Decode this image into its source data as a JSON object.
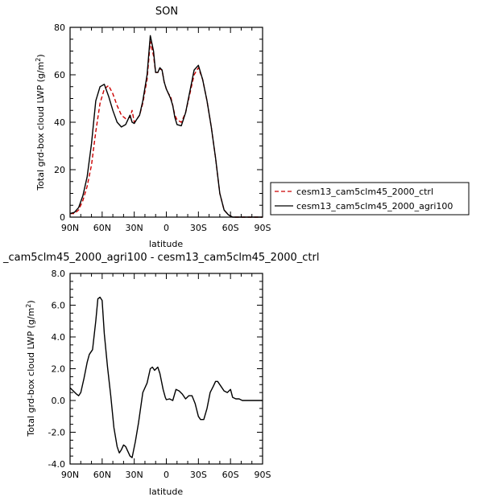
{
  "chart_data": [
    {
      "type": "line",
      "title": "SON",
      "xlabel": "latitude",
      "ylabel": "Total grd-box cloud LWP (g/m",
      "ylabel_sup": "2",
      "ylabel_close": ")",
      "xlim": [
        90,
        -90
      ],
      "ylim": [
        0,
        80
      ],
      "xticks": [
        90,
        60,
        30,
        0,
        -30,
        -60,
        -90
      ],
      "xtick_labels": [
        "90N",
        "60N",
        "30N",
        "0",
        "30S",
        "60S",
        "90S"
      ],
      "yticks": [
        0,
        20,
        40,
        60,
        80
      ],
      "ytick_labels": [
        "0",
        "20",
        "40",
        "60",
        "80"
      ],
      "legend_position": "right",
      "series": [
        {
          "name": "cesm13_cam5clm45_2000_ctrl",
          "color": "#cc0000",
          "dash": true,
          "x": [
            90,
            86,
            82,
            78,
            74,
            70,
            66,
            62,
            58,
            54,
            50,
            46,
            42,
            38,
            34,
            32,
            30,
            28,
            25,
            22,
            18,
            15,
            12,
            10,
            8,
            6,
            4,
            2,
            0,
            -2,
            -4,
            -6,
            -8,
            -10,
            -14,
            -18,
            -22,
            -26,
            -30,
            -34,
            -38,
            -42,
            -46,
            -50,
            -54,
            -58,
            -62,
            -66,
            -70,
            -74,
            -78,
            -82,
            -86,
            -90
          ],
          "y": [
            1.5,
            1.5,
            3,
            7,
            13,
            22,
            36,
            48,
            54,
            55.5,
            52,
            47,
            43,
            41.5,
            42,
            45,
            40,
            41,
            43,
            48,
            58,
            74,
            68,
            61,
            61,
            62.5,
            62,
            57,
            54,
            52,
            51,
            47,
            43,
            41,
            40,
            44,
            52,
            60,
            63,
            58,
            49,
            38,
            25,
            10,
            3,
            1,
            0,
            0,
            0,
            0,
            0,
            0,
            0,
            0
          ]
        },
        {
          "name": "cesm13_cam5clm45_2000_agri100",
          "color": "#000000",
          "dash": false,
          "x": [
            90,
            86,
            82,
            78,
            74,
            70,
            66,
            62,
            58,
            54,
            50,
            46,
            42,
            38,
            34,
            32,
            30,
            28,
            25,
            22,
            18,
            15,
            12,
            10,
            8,
            6,
            4,
            2,
            0,
            -2,
            -4,
            -6,
            -8,
            -10,
            -14,
            -18,
            -22,
            -26,
            -30,
            -34,
            -38,
            -42,
            -46,
            -50,
            -54,
            -58,
            -62,
            -66,
            -70,
            -74,
            -78,
            -82,
            -86,
            -90
          ],
          "y": [
            1.5,
            2,
            4,
            9,
            17,
            31,
            49,
            55,
            56,
            51,
            45,
            40,
            38,
            39,
            43,
            40,
            39.5,
            41,
            43,
            49,
            60,
            76.5,
            70,
            61,
            61,
            63,
            62,
            57,
            54,
            52,
            50,
            47,
            42,
            39,
            38.5,
            44,
            53,
            62,
            64,
            58,
            49,
            38,
            25,
            10,
            3,
            1,
            0,
            0,
            0,
            0,
            0,
            0,
            0,
            0
          ]
        }
      ]
    },
    {
      "type": "line",
      "title": "_cam5clm45_2000_agri100 - cesm13_cam5clm45_2000_ctrl",
      "xlabel": "latitude",
      "ylabel": "Total grd-box cloud LWP (g/m",
      "ylabel_sup": "2",
      "ylabel_close": ")",
      "xlim": [
        90,
        -90
      ],
      "ylim": [
        -4,
        8
      ],
      "xticks": [
        90,
        60,
        30,
        0,
        -30,
        -60,
        -90
      ],
      "xtick_labels": [
        "90N",
        "60N",
        "30N",
        "0",
        "30S",
        "60S",
        "90S"
      ],
      "yticks": [
        -4,
        -2,
        0,
        2,
        4,
        6,
        8
      ],
      "ytick_labels": [
        "-4.0",
        "-2.0",
        "0.0",
        "2.0",
        "4.0",
        "6.0",
        "8.0"
      ],
      "series": [
        {
          "name": "",
          "color": "#000000",
          "dash": false,
          "x": [
            90,
            87,
            84,
            82,
            80,
            77,
            74,
            72,
            69,
            66,
            64,
            62,
            60,
            58,
            55,
            52,
            49,
            46,
            44,
            42,
            40,
            38,
            36,
            34,
            32,
            29,
            26,
            22,
            18,
            15,
            13,
            11,
            8,
            6,
            3,
            1,
            0,
            -3,
            -6,
            -9,
            -12,
            -15,
            -18,
            -21,
            -24,
            -27,
            -30,
            -32,
            -35,
            -38,
            -41,
            -44,
            -46,
            -48,
            -51,
            -54,
            -57,
            -60,
            -62,
            -65,
            -68,
            -71,
            -74,
            -78,
            -84,
            -90
          ],
          "y": [
            0.8,
            0.6,
            0.4,
            0.3,
            0.5,
            1.4,
            2.4,
            2.9,
            3.2,
            5.0,
            6.4,
            6.5,
            6.3,
            4.2,
            2.1,
            0.3,
            -1.7,
            -2.9,
            -3.3,
            -3.1,
            -2.8,
            -2.9,
            -3.2,
            -3.5,
            -3.6,
            -2.6,
            -1.4,
            0.5,
            1.1,
            2.0,
            2.1,
            1.9,
            2.1,
            1.7,
            0.7,
            0.2,
            0.05,
            0.1,
            0.0,
            0.7,
            0.6,
            0.4,
            0.1,
            0.3,
            0.3,
            -0.2,
            -1.0,
            -1.2,
            -1.2,
            -0.5,
            0.5,
            0.9,
            1.2,
            1.2,
            0.9,
            0.6,
            0.5,
            0.7,
            0.2,
            0.1,
            0.1,
            0.0,
            0.0,
            0.0,
            0.0,
            0.0
          ]
        }
      ]
    }
  ]
}
